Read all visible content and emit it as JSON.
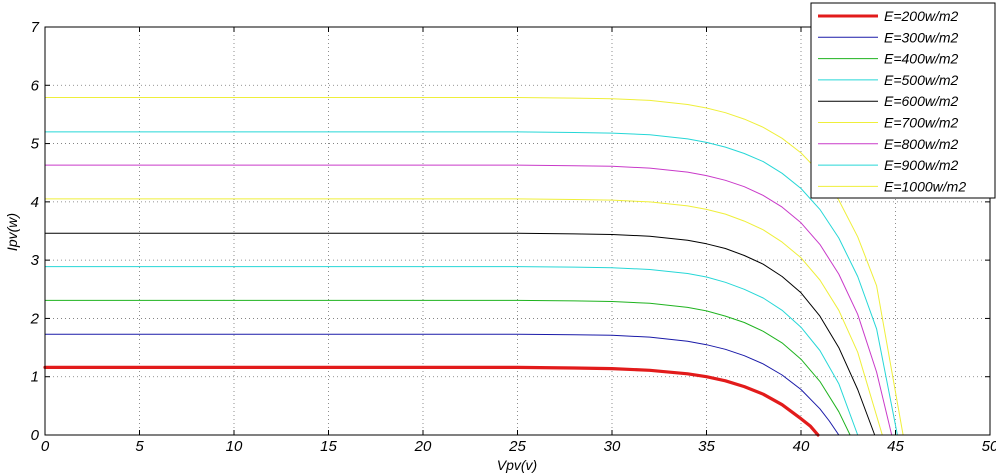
{
  "chart_data": {
    "type": "line",
    "xlabel": "Vpv(v)",
    "ylabel": "Ipv(w)",
    "xlim": [
      0,
      50
    ],
    "ylim": [
      0,
      7
    ],
    "xticks": [
      0,
      5,
      10,
      15,
      20,
      25,
      30,
      35,
      40,
      45,
      50
    ],
    "yticks": [
      0,
      1,
      2,
      3,
      4,
      5,
      6,
      7
    ],
    "grid": true,
    "legend_position": "top-right",
    "series": [
      {
        "name": "E=200w/m2",
        "color": "#e21b1b",
        "bold": true,
        "x": [
          0,
          5,
          10,
          15,
          20,
          25,
          28,
          30,
          32,
          34,
          35,
          36,
          37,
          38,
          39,
          40,
          40.5,
          40.9
        ],
        "y": [
          1.16,
          1.16,
          1.16,
          1.16,
          1.16,
          1.16,
          1.15,
          1.14,
          1.11,
          1.05,
          1.0,
          0.93,
          0.83,
          0.7,
          0.52,
          0.28,
          0.15,
          0.0
        ]
      },
      {
        "name": "E=300w/m2",
        "color": "#1a1aa8",
        "x": [
          0,
          5,
          10,
          15,
          20,
          25,
          28,
          30,
          32,
          34,
          35,
          36,
          37,
          38,
          39,
          40,
          41,
          41.5,
          42.0
        ],
        "y": [
          1.73,
          1.73,
          1.73,
          1.73,
          1.73,
          1.73,
          1.72,
          1.71,
          1.68,
          1.61,
          1.55,
          1.47,
          1.36,
          1.22,
          1.03,
          0.78,
          0.45,
          0.24,
          0.0
        ]
      },
      {
        "name": "E=400w/m2",
        "color": "#1fb31f",
        "x": [
          0,
          5,
          10,
          15,
          20,
          25,
          28,
          30,
          32,
          34,
          35,
          36,
          37,
          38,
          39,
          40,
          41,
          42,
          42.6
        ],
        "y": [
          2.31,
          2.31,
          2.31,
          2.31,
          2.31,
          2.31,
          2.3,
          2.29,
          2.26,
          2.19,
          2.13,
          2.04,
          1.93,
          1.78,
          1.58,
          1.3,
          0.92,
          0.4,
          0.0
        ]
      },
      {
        "name": "E=500w/m2",
        "color": "#26d7d7",
        "x": [
          0,
          5,
          10,
          15,
          20,
          25,
          28,
          30,
          32,
          34,
          35,
          36,
          37,
          38,
          39,
          40,
          41,
          42,
          43.0
        ],
        "y": [
          2.89,
          2.89,
          2.89,
          2.89,
          2.89,
          2.89,
          2.88,
          2.87,
          2.84,
          2.77,
          2.71,
          2.62,
          2.5,
          2.35,
          2.14,
          1.85,
          1.45,
          0.88,
          0.0
        ]
      },
      {
        "name": "E=600w/m2",
        "color": "#000000",
        "x": [
          0,
          5,
          10,
          15,
          20,
          25,
          28,
          30,
          32,
          34,
          35,
          36,
          37,
          38,
          39,
          40,
          41,
          42,
          43,
          43.9
        ],
        "y": [
          3.46,
          3.46,
          3.46,
          3.46,
          3.46,
          3.46,
          3.45,
          3.44,
          3.41,
          3.34,
          3.28,
          3.2,
          3.08,
          2.93,
          2.72,
          2.44,
          2.04,
          1.5,
          0.78,
          0.0
        ]
      },
      {
        "name": "E=700w/m2",
        "color": "#efef3a",
        "x": [
          0,
          5,
          10,
          15,
          20,
          25,
          28,
          30,
          32,
          34,
          35,
          36,
          37,
          38,
          39,
          40,
          41,
          42,
          43,
          44.3
        ],
        "y": [
          4.05,
          4.05,
          4.05,
          4.05,
          4.05,
          4.05,
          4.04,
          4.03,
          4.0,
          3.93,
          3.87,
          3.79,
          3.67,
          3.52,
          3.31,
          3.04,
          2.66,
          2.14,
          1.42,
          0.0
        ]
      },
      {
        "name": "E=800w/m2",
        "color": "#c93ac9",
        "x": [
          0,
          5,
          10,
          15,
          20,
          25,
          28,
          30,
          32,
          34,
          35,
          36,
          37,
          38,
          39,
          40,
          41,
          42,
          43,
          44,
          44.8
        ],
        "y": [
          4.63,
          4.63,
          4.63,
          4.63,
          4.63,
          4.63,
          4.62,
          4.61,
          4.58,
          4.51,
          4.45,
          4.37,
          4.26,
          4.11,
          3.91,
          3.64,
          3.27,
          2.76,
          2.07,
          1.08,
          0.0
        ]
      },
      {
        "name": "E=900w/m2",
        "color": "#26d7d7",
        "x": [
          0,
          5,
          10,
          15,
          20,
          25,
          28,
          30,
          32,
          34,
          35,
          36,
          37,
          38,
          39,
          40,
          41,
          42,
          43,
          44,
          45.1
        ],
        "y": [
          5.2,
          5.2,
          5.2,
          5.2,
          5.2,
          5.2,
          5.19,
          5.18,
          5.15,
          5.08,
          5.02,
          4.94,
          4.83,
          4.69,
          4.49,
          4.23,
          3.87,
          3.38,
          2.72,
          1.82,
          0.0
        ]
      },
      {
        "name": "E=1000w/m2",
        "color": "#efef3a",
        "x": [
          0,
          5,
          10,
          15,
          20,
          25,
          28,
          30,
          32,
          34,
          35,
          36,
          37,
          38,
          39,
          40,
          41,
          42,
          43,
          44,
          45.4
        ],
        "y": [
          5.79,
          5.79,
          5.79,
          5.79,
          5.79,
          5.79,
          5.78,
          5.77,
          5.74,
          5.67,
          5.61,
          5.53,
          5.42,
          5.28,
          5.09,
          4.84,
          4.5,
          4.03,
          3.4,
          2.56,
          0.0
        ]
      }
    ]
  }
}
